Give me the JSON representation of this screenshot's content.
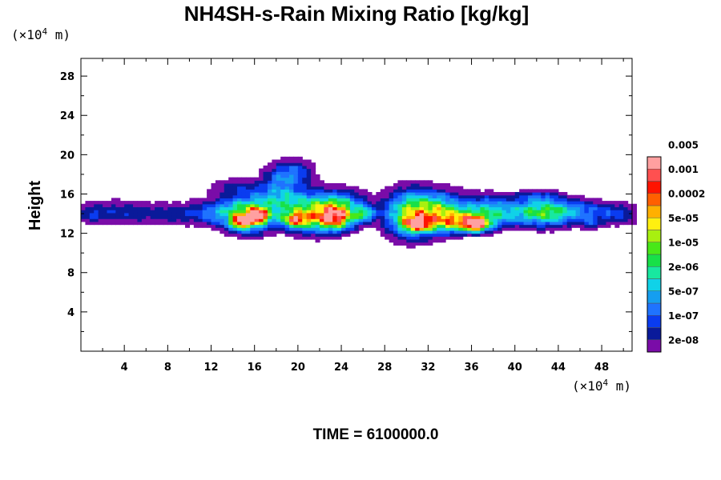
{
  "chart_data": {
    "type": "heatmap",
    "title": "NH4SH-s-Rain Mixing Ratio [kg/kg]",
    "ylabel": "Height",
    "x_unit": {
      "prefix": "(×10",
      "exp": "4",
      "suffix": " m)"
    },
    "y_unit": {
      "prefix": "(×10",
      "exp": "4",
      "suffix": " m)"
    },
    "xlim": [
      0,
      50.8
    ],
    "ylim": [
      0,
      29.8
    ],
    "x_ticks": [
      4,
      8,
      12,
      16,
      20,
      24,
      28,
      32,
      36,
      40,
      44,
      48
    ],
    "x_tick_labels": [
      "4",
      "8",
      "12",
      "16",
      "20",
      "24",
      "28",
      "32",
      "36",
      "40",
      "44",
      "48"
    ],
    "y_ticks": [
      4,
      8,
      12,
      16,
      20,
      24,
      28
    ],
    "y_tick_labels": [
      "4",
      "8",
      "12",
      "16",
      "20",
      "24",
      "28"
    ],
    "colorbar": {
      "colors": [
        "#7a0ca8",
        "#0a1a9a",
        "#0a3cf0",
        "#1f73ff",
        "#159ef0",
        "#10d2e8",
        "#18e8a0",
        "#18e048",
        "#48e818",
        "#a8f010",
        "#fff010",
        "#ffb000",
        "#ff6000",
        "#ff1400",
        "#ff5050",
        "#ffa0a0"
      ],
      "tick_labels": [
        "2e-08",
        "1e-07",
        "5e-07",
        "2e-06",
        "1e-05",
        "5e-05",
        "0.0002",
        "0.001",
        "0.005"
      ]
    },
    "field": {
      "x_step": 0.4,
      "y_step": 0.3,
      "background_level": 0,
      "blobs": [
        {
          "x": 3.5,
          "y": 14.2,
          "sx": 2.0,
          "sy": 0.9,
          "amp": 2.4
        },
        {
          "x": 0.8,
          "y": 14.0,
          "sx": 1.0,
          "sy": 0.7,
          "amp": 2.2
        },
        {
          "x": 8.5,
          "y": 14.0,
          "sx": 2.5,
          "sy": 0.8,
          "amp": 2.4
        },
        {
          "x": 13.0,
          "y": 14.2,
          "sx": 1.8,
          "sy": 1.0,
          "amp": 4.0
        },
        {
          "x": 15.5,
          "y": 13.8,
          "sx": 1.5,
          "sy": 1.2,
          "amp": 8.0
        },
        {
          "x": 14.8,
          "y": 13.2,
          "sx": 0.6,
          "sy": 0.4,
          "amp": 12.5
        },
        {
          "x": 16.3,
          "y": 13.8,
          "sx": 0.7,
          "sy": 0.5,
          "amp": 11.0
        },
        {
          "x": 18.2,
          "y": 15.5,
          "sx": 1.8,
          "sy": 1.2,
          "amp": 5.0
        },
        {
          "x": 18.5,
          "y": 17.8,
          "sx": 1.2,
          "sy": 1.1,
          "amp": 3.0
        },
        {
          "x": 20.0,
          "y": 18.3,
          "sx": 1.2,
          "sy": 0.8,
          "amp": 2.8
        },
        {
          "x": 14.0,
          "y": 16.8,
          "sx": 1.5,
          "sy": 0.6,
          "amp": 2.2
        },
        {
          "x": 21.5,
          "y": 14.0,
          "sx": 2.0,
          "sy": 1.3,
          "amp": 8.5
        },
        {
          "x": 23.5,
          "y": 13.6,
          "sx": 1.2,
          "sy": 0.8,
          "amp": 10.5
        },
        {
          "x": 19.8,
          "y": 13.4,
          "sx": 0.8,
          "sy": 0.5,
          "amp": 10.0
        },
        {
          "x": 24.0,
          "y": 15.0,
          "sx": 1.6,
          "sy": 1.0,
          "amp": 5.0
        },
        {
          "x": 26.2,
          "y": 14.0,
          "sx": 0.6,
          "sy": 0.5,
          "amp": 6.5
        },
        {
          "x": 30.3,
          "y": 14.0,
          "sx": 1.6,
          "sy": 1.6,
          "amp": 9.0
        },
        {
          "x": 31.0,
          "y": 13.0,
          "sx": 0.8,
          "sy": 0.5,
          "amp": 11.5
        },
        {
          "x": 33.0,
          "y": 14.2,
          "sx": 1.6,
          "sy": 1.3,
          "amp": 8.0
        },
        {
          "x": 35.5,
          "y": 13.2,
          "sx": 1.8,
          "sy": 0.7,
          "amp": 10.5
        },
        {
          "x": 36.5,
          "y": 12.9,
          "sx": 0.6,
          "sy": 0.4,
          "amp": 12.5
        },
        {
          "x": 37.5,
          "y": 14.5,
          "sx": 1.8,
          "sy": 1.0,
          "amp": 5.5
        },
        {
          "x": 40.2,
          "y": 14.0,
          "sx": 1.4,
          "sy": 0.8,
          "amp": 3.0
        },
        {
          "x": 42.5,
          "y": 14.2,
          "sx": 1.5,
          "sy": 1.0,
          "amp": 7.0
        },
        {
          "x": 44.5,
          "y": 14.2,
          "sx": 1.4,
          "sy": 0.9,
          "amp": 3.5
        },
        {
          "x": 46.5,
          "y": 14.3,
          "sx": 1.4,
          "sy": 0.8,
          "amp": 2.8
        },
        {
          "x": 49.5,
          "y": 14.0,
          "sx": 1.5,
          "sy": 0.8,
          "amp": 3.2
        },
        {
          "x": 47.0,
          "y": 12.9,
          "sx": 0.6,
          "sy": 0.4,
          "amp": 2.5
        },
        {
          "x": 42.0,
          "y": 15.8,
          "sx": 1.4,
          "sy": 0.4,
          "amp": 2.2
        }
      ]
    }
  },
  "footer": {
    "time_label": "TIME = 6100000.0"
  }
}
